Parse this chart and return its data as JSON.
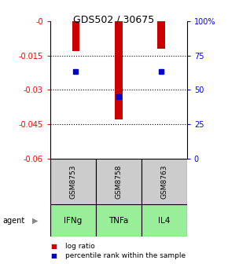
{
  "title": "GDS502 / 30675",
  "samples": [
    "GSM8753",
    "GSM8758",
    "GSM8763"
  ],
  "agents": [
    "IFNg",
    "TNFa",
    "IL4"
  ],
  "bar_values": [
    -0.013,
    -0.043,
    -0.012
  ],
  "percentile_values": [
    -0.022,
    -0.033,
    -0.022
  ],
  "ylim_left": [
    -0.06,
    0.0
  ],
  "ylim_right": [
    0,
    100
  ],
  "yticks_left": [
    0.0,
    -0.015,
    -0.03,
    -0.045,
    -0.06
  ],
  "ytick_labels_left": [
    "-0",
    "-0.015",
    "-0.03",
    "-0.045",
    "-0.06"
  ],
  "ytick_labels_right": [
    "100%",
    "75",
    "50",
    "25",
    "0"
  ],
  "yticks_right_vals": [
    100,
    75,
    50,
    25,
    0
  ],
  "bar_color": "#cc0000",
  "percentile_color": "#0000cc",
  "agent_bg_color": "#99ee99",
  "sample_bg_color": "#cccccc",
  "legend_log_ratio": "log ratio",
  "legend_percentile": "percentile rank within the sample",
  "agent_label": "agent",
  "bar_width": 0.18,
  "title_fontsize": 9,
  "tick_fontsize": 7,
  "label_fontsize": 7
}
